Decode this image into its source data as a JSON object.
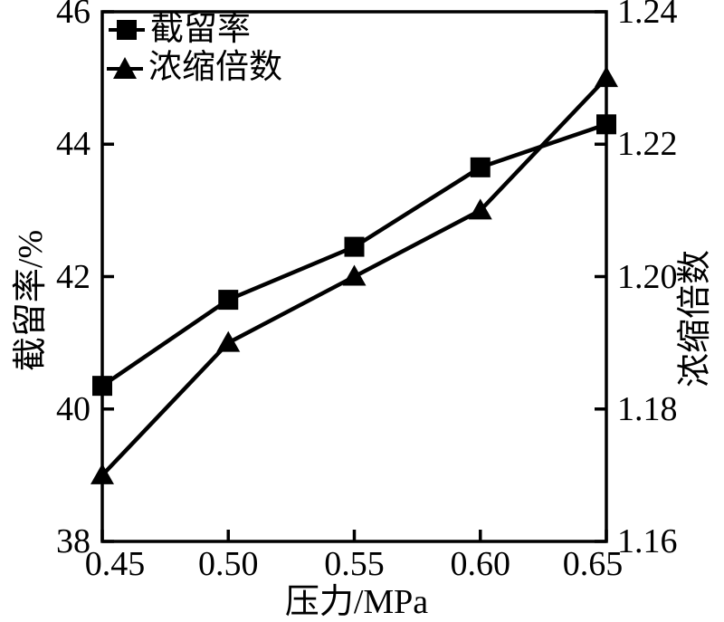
{
  "figure": {
    "background": "#ffffff",
    "ink_color": "#000000"
  },
  "chart_data": {
    "type": "line",
    "x": [
      0.45,
      0.5,
      0.55,
      0.6,
      0.65
    ],
    "x_tick_labels": [
      "0.45",
      "0.50",
      "0.55",
      "0.60",
      "0.65"
    ],
    "xlabel": "压力/MPa",
    "xlim": [
      0.45,
      0.65
    ],
    "grid": false,
    "legend_position": "top-left-inside",
    "series": [
      {
        "name": "截留率",
        "axis": "left",
        "marker": "square",
        "color": "#000000",
        "values": [
          40.35,
          41.65,
          42.45,
          43.65,
          44.3
        ]
      },
      {
        "name": "浓缩倍数",
        "axis": "right",
        "marker": "triangle",
        "color": "#000000",
        "values": [
          1.17,
          1.19,
          1.2,
          1.21,
          1.23
        ]
      }
    ],
    "left_axis": {
      "label": "截留率/%",
      "lim": [
        38,
        46
      ],
      "ticks": [
        38,
        40,
        42,
        44,
        46
      ],
      "tick_labels": [
        "38",
        "40",
        "42",
        "44",
        "46"
      ]
    },
    "right_axis": {
      "label": "浓缩倍数",
      "lim": [
        1.16,
        1.24
      ],
      "ticks": [
        1.16,
        1.18,
        1.2,
        1.22,
        1.24
      ],
      "tick_labels": [
        "1.16",
        "1.18",
        "1.20",
        "1.22",
        "1.24"
      ]
    },
    "legend": {
      "entries": [
        {
          "label": "截留率",
          "marker": "square"
        },
        {
          "label": "浓缩倍数",
          "marker": "triangle"
        }
      ]
    }
  }
}
